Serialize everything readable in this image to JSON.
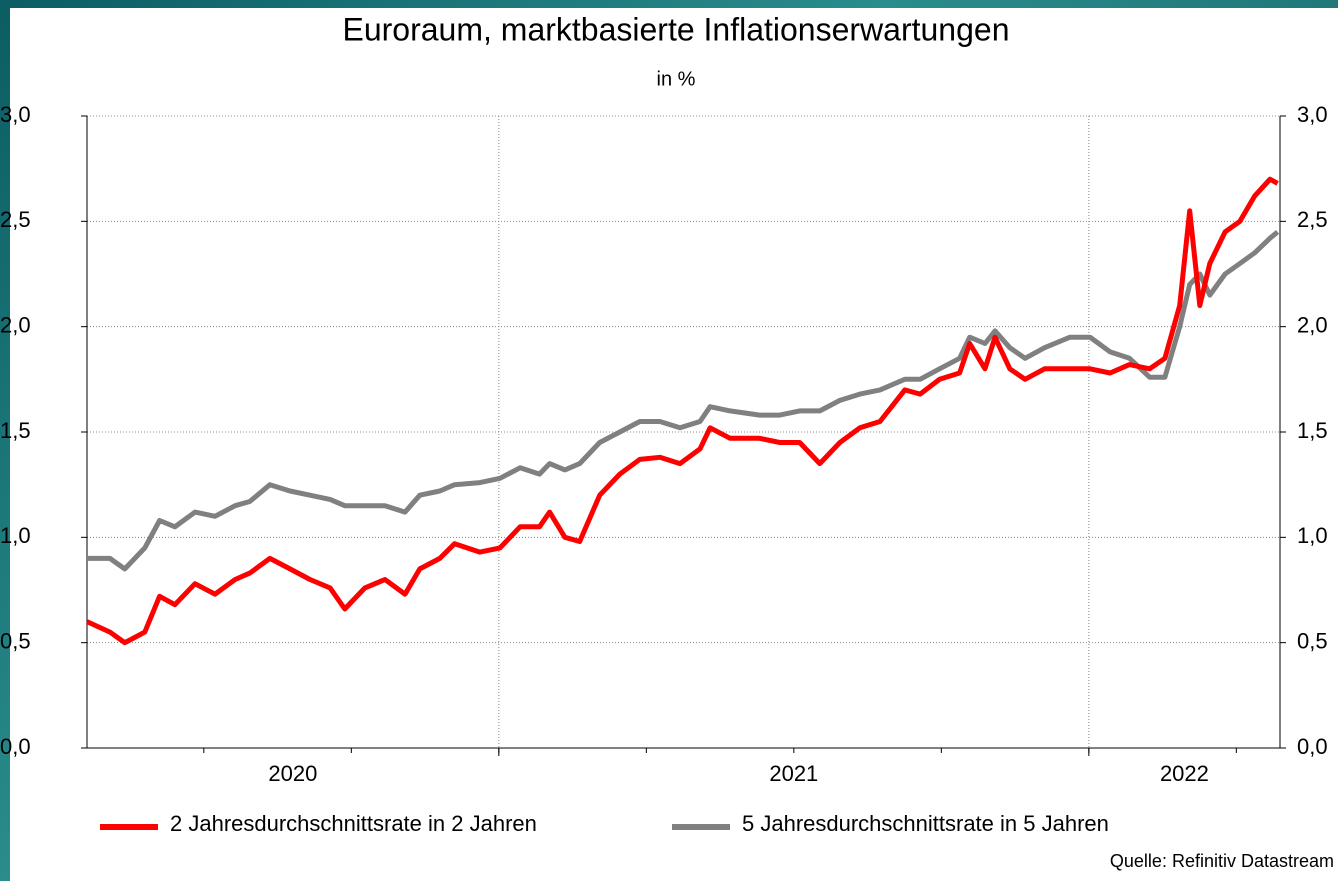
{
  "chart_data": {
    "type": "line",
    "title": "Euroraum, marktbasierte Inflationserwartungen",
    "subtitle": "in %",
    "source": "Quelle: Refinitiv Datastream",
    "x": [
      2020.302,
      2020.341,
      2020.366,
      2020.4,
      2020.425,
      2020.451,
      2020.485,
      2020.519,
      2020.553,
      2020.578,
      2020.612,
      2020.646,
      2020.68,
      2020.714,
      2020.739,
      2020.773,
      2020.807,
      2020.841,
      2020.866,
      2020.9,
      2020.925,
      2020.968,
      2021.002,
      2021.036,
      2021.069,
      2021.086,
      2021.112,
      2021.137,
      2021.171,
      2021.205,
      2021.239,
      2021.273,
      2021.307,
      2021.341,
      2021.358,
      2021.392,
      2021.442,
      2021.476,
      2021.51,
      2021.544,
      2021.578,
      2021.612,
      2021.646,
      2021.688,
      2021.714,
      2021.747,
      2021.781,
      2021.798,
      2021.824,
      2021.841,
      2021.866,
      2021.892,
      2021.925,
      2021.968,
      2022.002,
      2022.036,
      2022.069,
      2022.103,
      2022.129,
      2022.154,
      2022.171,
      2022.188,
      2022.205,
      2022.231,
      2022.256,
      2022.281,
      2022.307,
      2022.32
    ],
    "series": [
      {
        "name": "2 Jahresdurchschnittsrate in 2 Jahren",
        "color": "#ff0000",
        "values": [
          0.6,
          0.55,
          0.5,
          0.55,
          0.72,
          0.68,
          0.78,
          0.73,
          0.8,
          0.83,
          0.9,
          0.85,
          0.8,
          0.76,
          0.66,
          0.76,
          0.8,
          0.73,
          0.85,
          0.9,
          0.97,
          0.93,
          0.95,
          1.05,
          1.05,
          1.12,
          1.0,
          0.98,
          1.2,
          1.3,
          1.37,
          1.38,
          1.35,
          1.42,
          1.52,
          1.47,
          1.47,
          1.45,
          1.45,
          1.35,
          1.45,
          1.52,
          1.55,
          1.7,
          1.68,
          1.75,
          1.78,
          1.92,
          1.8,
          1.95,
          1.8,
          1.75,
          1.8,
          1.8,
          1.8,
          1.78,
          1.82,
          1.8,
          1.85,
          2.1,
          2.55,
          2.1,
          2.3,
          2.45,
          2.5,
          2.62,
          2.7,
          2.68
        ]
      },
      {
        "name": "5 Jahresdurchschnittsrate in 5 Jahren",
        "color": "#808080",
        "values": [
          0.9,
          0.9,
          0.85,
          0.95,
          1.08,
          1.05,
          1.12,
          1.1,
          1.15,
          1.17,
          1.25,
          1.22,
          1.2,
          1.18,
          1.15,
          1.15,
          1.15,
          1.12,
          1.2,
          1.22,
          1.25,
          1.26,
          1.28,
          1.33,
          1.3,
          1.35,
          1.32,
          1.35,
          1.45,
          1.5,
          1.55,
          1.55,
          1.52,
          1.55,
          1.62,
          1.6,
          1.58,
          1.58,
          1.6,
          1.6,
          1.65,
          1.68,
          1.7,
          1.75,
          1.75,
          1.8,
          1.85,
          1.95,
          1.92,
          1.98,
          1.9,
          1.85,
          1.9,
          1.95,
          1.95,
          1.88,
          1.85,
          1.76,
          1.76,
          2.0,
          2.2,
          2.25,
          2.15,
          2.25,
          2.3,
          2.35,
          2.42,
          2.45
        ]
      }
    ],
    "xlim": [
      2020.302,
      2022.324
    ],
    "xticks": [
      2020.5,
      2020.75,
      2021,
      2021.25,
      2021.5,
      2021.75,
      2022,
      2022.25
    ],
    "xgrid": [
      2021,
      2022
    ],
    "xlabels": [
      2020,
      2021,
      2022
    ],
    "ylim": [
      0,
      3
    ],
    "yticks": [
      {
        "value": 0,
        "label": "0,0"
      },
      {
        "value": 0.5,
        "label": "0,5"
      },
      {
        "value": 1,
        "label": "1,0"
      },
      {
        "value": 1.5,
        "label": "1,5"
      },
      {
        "value": 2,
        "label": "2,0"
      },
      {
        "value": 2.5,
        "label": "2,5"
      },
      {
        "value": 3,
        "label": "3,0"
      }
    ],
    "grid": true,
    "legend": "bottom"
  }
}
